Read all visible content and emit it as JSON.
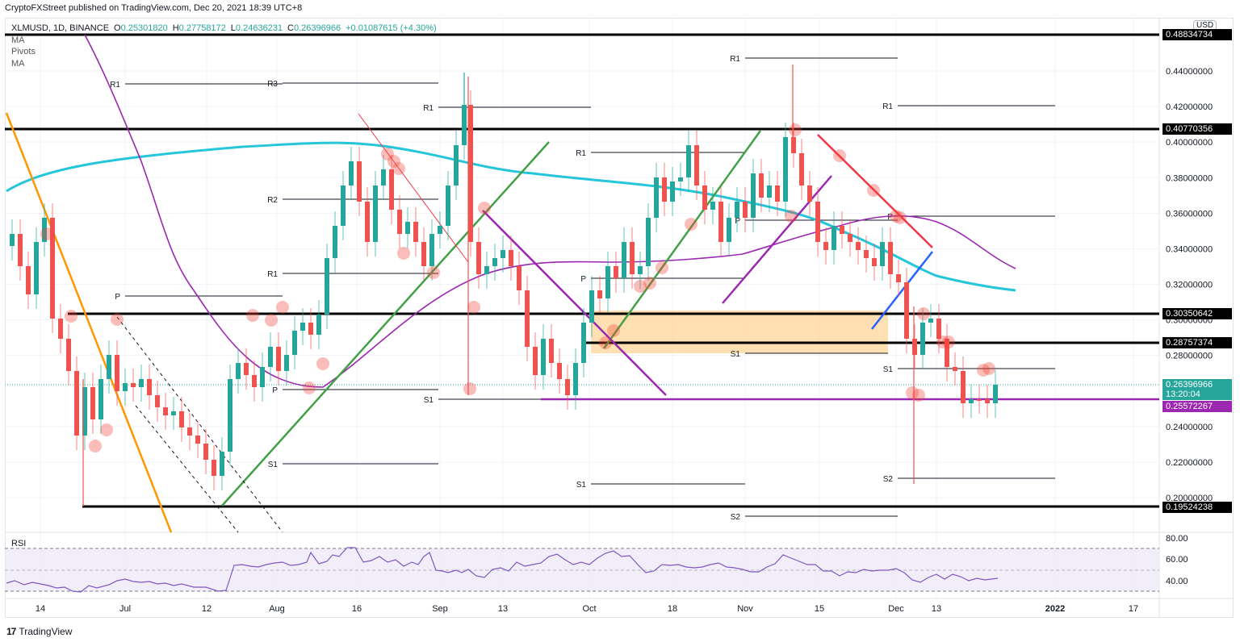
{
  "publisher_line": "CryptoFXStreet published on TradingView.com, Dec 20, 2021 18:39 UTC+8",
  "legend": {
    "symbol": "XLMUSD, 1D, BINANCE",
    "open_label": "O",
    "open": "0.25301820",
    "high_label": "H",
    "high": "0.27758172",
    "low_label": "L",
    "low": "0.24636231",
    "close_label": "C",
    "close": "0.26396966",
    "change": "+0.01087615 (+4.30%)",
    "indicators": [
      "MA",
      "Pivots",
      "MA"
    ]
  },
  "currency": "USD",
  "price_tags": {
    "top_level": "0.48834734",
    "r_4077": "0.40770356",
    "r_3035": "0.30350642",
    "r_2875": "0.28757374",
    "last_price": "0.26396966",
    "countdown": "13:20:04",
    "support_purple": "0.25572267",
    "s_1952": "0.19524238"
  },
  "colors": {
    "bull": "#26a69a",
    "bear": "#ef5350",
    "ma_fast": "#26c6da",
    "ma_slow": "#9c27b0",
    "orange_trend": "#ff9800",
    "green_trend": "#43a047",
    "purple_line": "#9c27b0",
    "red_trend": "#f23645",
    "blue_trend": "#2962ff",
    "zone": "#ffcc80",
    "rsi": "#7e57c2"
  },
  "rsi": {
    "label": "RSI",
    "ticks": [
      "80.00",
      "60.00",
      "40.00"
    ]
  },
  "footer": {
    "brand": "TradingView"
  },
  "chart_data": {
    "type": "candlestick",
    "title": "XLMUSD, 1D, BINANCE",
    "ylabel": "USD",
    "ylim": [
      0.185,
      0.49
    ],
    "y_ticks": [
      "0.44000000",
      "0.42000000",
      "0.40000000",
      "0.38000000",
      "0.36000000",
      "0.34000000",
      "0.32000000",
      "0.30000000",
      "0.28000000",
      "0.24000000",
      "0.22000000",
      "0.20000000"
    ],
    "x_ticks": [
      "14",
      "Jul",
      "12",
      "Aug",
      "16",
      "Sep",
      "13",
      "Oct",
      "18",
      "Nov",
      "15",
      "Dec",
      "13",
      "2022",
      "17"
    ],
    "last_ohlc": {
      "open": 0.2530182,
      "high": 0.27758172,
      "low": 0.24636231,
      "close": 0.26396966,
      "change": 0.01087615,
      "change_pct": 4.3
    },
    "horizontal_levels": [
      0.48834734,
      0.40770356,
      0.30350642,
      0.28757374,
      0.25572267,
      0.19524238
    ],
    "pivot_labels": [
      "R1",
      "R3",
      "R2",
      "R1",
      "P",
      "P",
      "S1",
      "R1",
      "R1",
      "S1",
      "P",
      "R1",
      "P",
      "R1",
      "P",
      "S1",
      "S2",
      "S1",
      "S2",
      "R1",
      "P",
      "S1",
      "S2"
    ],
    "rsi_ticks": [
      80,
      60,
      40
    ],
    "rsi_last": 42
  }
}
